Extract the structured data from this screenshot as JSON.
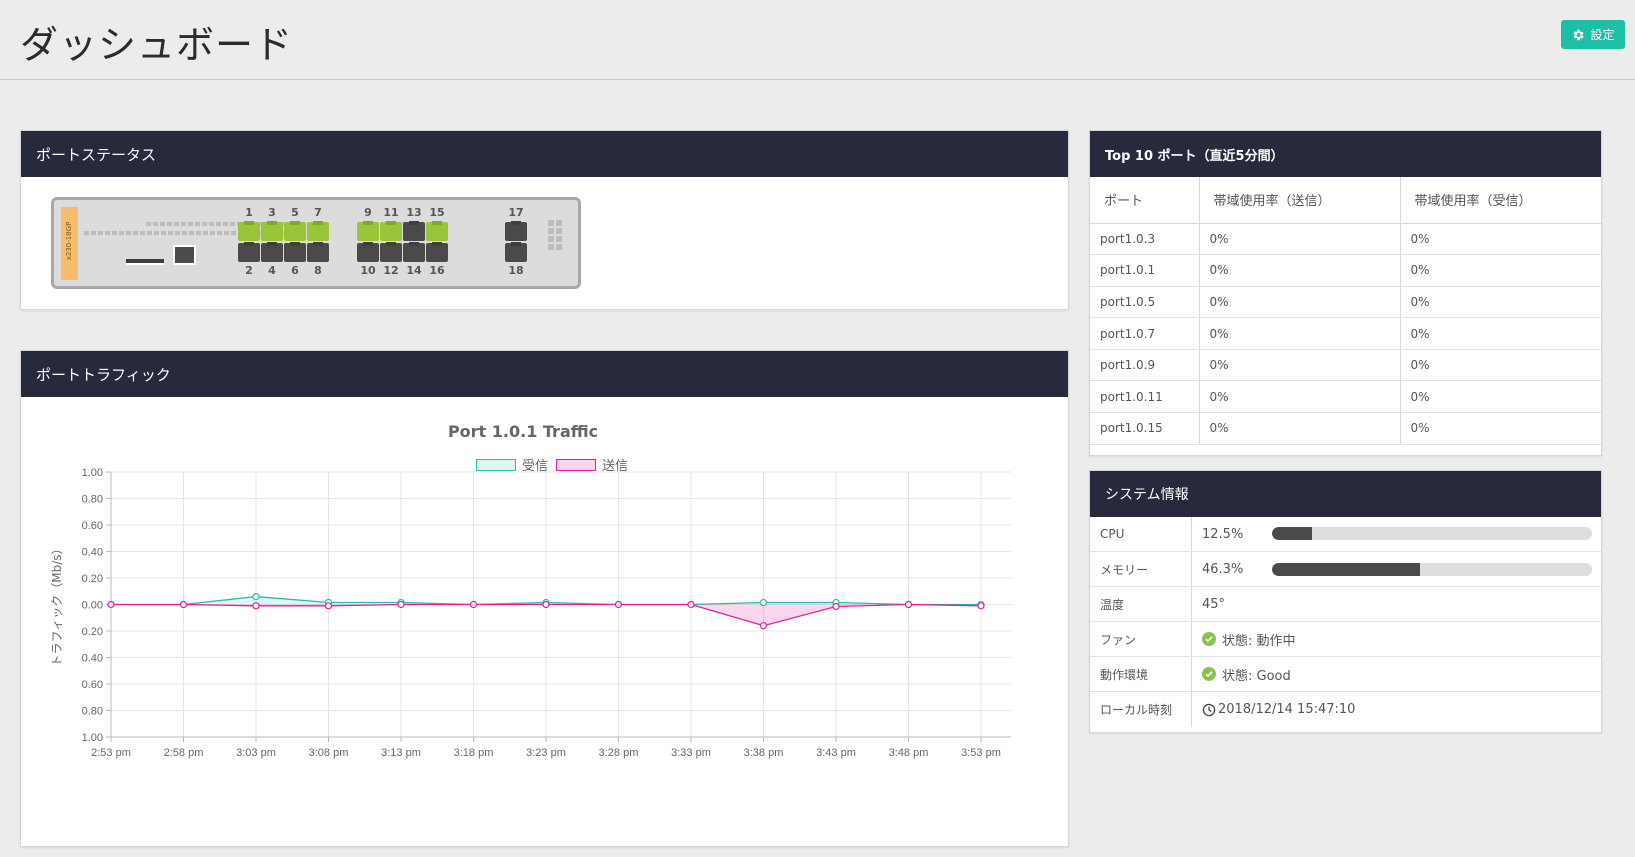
{
  "header": {
    "title": "ダッシュボード",
    "settings_label": "設定"
  },
  "colors": {
    "panel_head": "#272a3d",
    "accent": "#1fbfa7",
    "port_up": "#99c53a",
    "port_down": "#4a4a4a",
    "rx": "#2bbbad",
    "tx": "#e91e9b"
  },
  "port_status": {
    "title": "ポートステータス",
    "model": "x230-18GP",
    "ports": [
      {
        "num": "1",
        "state": "up"
      },
      {
        "num": "2",
        "state": "down"
      },
      {
        "num": "3",
        "state": "up"
      },
      {
        "num": "4",
        "state": "down"
      },
      {
        "num": "5",
        "state": "up"
      },
      {
        "num": "6",
        "state": "down"
      },
      {
        "num": "7",
        "state": "up"
      },
      {
        "num": "8",
        "state": "down"
      },
      {
        "num": "9",
        "state": "up"
      },
      {
        "num": "10",
        "state": "down"
      },
      {
        "num": "11",
        "state": "up"
      },
      {
        "num": "12",
        "state": "down"
      },
      {
        "num": "13",
        "state": "down"
      },
      {
        "num": "14",
        "state": "down"
      },
      {
        "num": "15",
        "state": "up"
      },
      {
        "num": "16",
        "state": "down"
      },
      {
        "num": "17",
        "state": "down"
      },
      {
        "num": "18",
        "state": "down"
      }
    ]
  },
  "traffic": {
    "title": "ポートトラフィック",
    "chart_data": {
      "type": "line",
      "title": "Port 1.0.1 Traffic",
      "ylabel": "トラフィック（Mb/s）",
      "xlabel": "",
      "ylim": [
        -1.0,
        1.0
      ],
      "yticks": [
        1.0,
        0.8,
        0.6,
        0.4,
        0.2,
        0.0,
        -0.2,
        -0.4,
        -0.6,
        -0.8,
        -1.0
      ],
      "ytick_labels": [
        "1.00",
        "0.80",
        "0.60",
        "0.40",
        "0.20",
        "0.00",
        "0.20",
        "0.40",
        "0.60",
        "0.80",
        "1.00"
      ],
      "categories": [
        "2:53 pm",
        "2:58 pm",
        "3:03 pm",
        "3:08 pm",
        "3:13 pm",
        "3:18 pm",
        "3:23 pm",
        "3:28 pm",
        "3:33 pm",
        "3:38 pm",
        "3:43 pm",
        "3:48 pm",
        "3:53 pm"
      ],
      "grid": true,
      "legend": "top-center",
      "series": [
        {
          "name": "受信",
          "values": [
            0.0,
            0.0,
            0.06,
            0.015,
            0.015,
            0.0,
            0.015,
            0.0,
            0.0,
            0.015,
            0.015,
            0.0,
            0.0
          ]
        },
        {
          "name": "送信",
          "values": [
            0.0,
            0.0,
            -0.01,
            -0.01,
            0.0,
            0.0,
            0.0,
            0.0,
            0.0,
            -0.16,
            -0.015,
            0.0,
            -0.01
          ]
        }
      ]
    }
  },
  "top10": {
    "title": "Top 10 ポート（直近5分間）",
    "headers": [
      "ポート",
      "帯域使用率（送信）",
      "帯域使用率（受信）"
    ],
    "rows": [
      [
        "port1.0.3",
        "0%",
        "0%"
      ],
      [
        "port1.0.1",
        "0%",
        "0%"
      ],
      [
        "port1.0.5",
        "0%",
        "0%"
      ],
      [
        "port1.0.7",
        "0%",
        "0%"
      ],
      [
        "port1.0.9",
        "0%",
        "0%"
      ],
      [
        "port1.0.11",
        "0%",
        "0%"
      ],
      [
        "port1.0.15",
        "0%",
        "0%"
      ]
    ]
  },
  "system": {
    "title": "システム情報",
    "cpu_label": "CPU",
    "cpu_value": "12.5%",
    "cpu_fraction": 0.125,
    "mem_label": "メモリー",
    "mem_value": "46.3%",
    "mem_fraction": 0.463,
    "temp_label": "温度",
    "temp_value": "45°",
    "fan_label": "ファン",
    "fan_value": "状態: 動作中",
    "env_label": "動作環境",
    "env_value": "状態: Good",
    "time_label": "ローカル時刻",
    "time_value": "2018/12/14 15:47:10"
  }
}
